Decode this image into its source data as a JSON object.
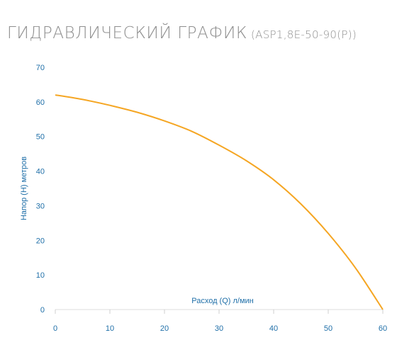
{
  "title": {
    "main": "ГИДРАВЛИЧЕСКИЙ ГРАФИК",
    "model": "(ASP1,8E-50-90(P))"
  },
  "chart_data": {
    "type": "line",
    "xlabel": "Расход (Q) л/мин",
    "ylabel": "Напор (H) метров",
    "xlim": [
      0,
      60
    ],
    "ylim": [
      0,
      70
    ],
    "x_ticks": [
      "0",
      "10",
      "20",
      "30",
      "40",
      "50",
      "60"
    ],
    "y_ticks": [
      "0",
      "10",
      "20",
      "30",
      "40",
      "50",
      "60",
      "70"
    ],
    "grid": false,
    "legend": "none",
    "line_color": "#f5a623",
    "tick_color": "#1f6fa8",
    "series": [
      {
        "x": [
          0,
          5,
          10,
          15,
          20,
          25,
          30,
          35,
          40,
          45,
          50,
          55,
          60
        ],
        "y": [
          62,
          60.7,
          59,
          57,
          54.5,
          51.5,
          47.5,
          43,
          37.5,
          30.5,
          22,
          12,
          0
        ]
      }
    ]
  }
}
